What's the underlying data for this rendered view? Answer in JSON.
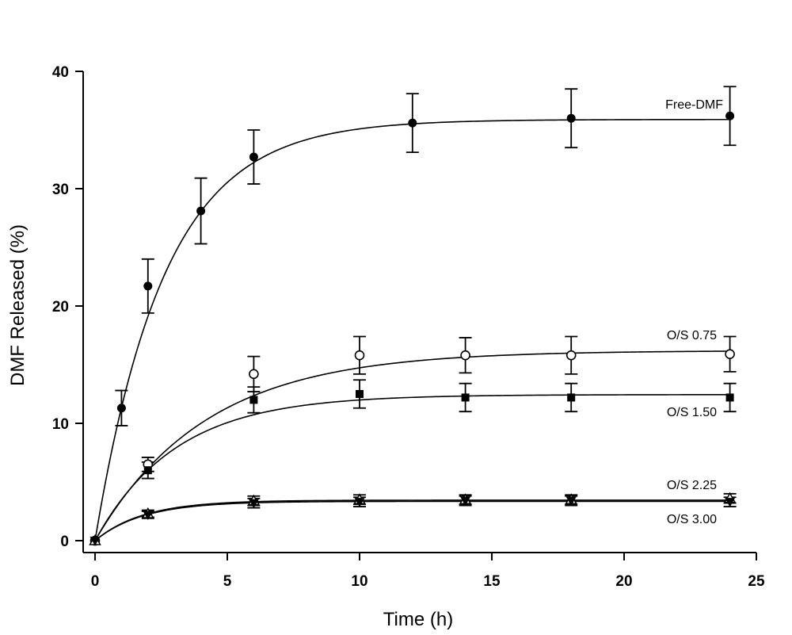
{
  "chart_data": {
    "type": "scatter",
    "title": "",
    "xlabel": "Time (h)",
    "ylabel": "DMF Released (%)",
    "xlim": [
      0,
      25
    ],
    "ylim": [
      0,
      40
    ],
    "xticks": [
      0,
      5,
      10,
      15,
      20,
      25
    ],
    "yticks": [
      0,
      10,
      20,
      30,
      40
    ],
    "grid": false,
    "legend": "inline labels at right end of each curve",
    "series": [
      {
        "name": "Free-DMF",
        "marker": "filled-circle",
        "x": [
          0,
          1,
          2,
          4,
          6,
          12,
          18,
          24
        ],
        "y": [
          0,
          11.3,
          21.7,
          28.1,
          32.7,
          35.6,
          36.0,
          36.2
        ],
        "err": [
          0,
          1.5,
          2.3,
          2.8,
          2.3,
          2.5,
          2.5,
          2.5
        ],
        "fit": {
          "plateau": 35.9,
          "k": 0.38
        }
      },
      {
        "name": "O/S 0.75",
        "marker": "open-circle",
        "x": [
          0,
          2,
          6,
          10,
          14,
          18,
          24
        ],
        "y": [
          0,
          6.5,
          14.2,
          15.8,
          15.8,
          15.8,
          15.9
        ],
        "err": [
          0,
          0.6,
          1.5,
          1.6,
          1.5,
          1.6,
          1.5
        ],
        "fit": {
          "plateau": 16.2,
          "k": 0.24
        }
      },
      {
        "name": "O/S 1.50",
        "marker": "filled-square",
        "x": [
          0,
          2,
          6,
          10,
          14,
          18,
          24
        ],
        "y": [
          0,
          6.0,
          12.0,
          12.5,
          12.2,
          12.2,
          12.2
        ],
        "err": [
          0,
          0.7,
          1.1,
          1.2,
          1.2,
          1.2,
          1.2
        ],
        "fit": {
          "plateau": 12.45,
          "k": 0.33
        }
      },
      {
        "name": "O/S 2.25",
        "marker": "open-triangle-up",
        "x": [
          0,
          2,
          6,
          10,
          14,
          18,
          24
        ],
        "y": [
          0,
          2.3,
          3.4,
          3.5,
          3.5,
          3.5,
          3.6
        ],
        "err": [
          0,
          0.3,
          0.4,
          0.4,
          0.4,
          0.4,
          0.4
        ],
        "fit": {
          "plateau": 3.45,
          "k": 0.55
        }
      },
      {
        "name": "O/S 3.00",
        "marker": "filled-triangle-down",
        "x": [
          0,
          2,
          6,
          10,
          14,
          18,
          24
        ],
        "y": [
          0,
          2.2,
          3.2,
          3.3,
          3.4,
          3.4,
          3.3
        ],
        "err": [
          0,
          0.3,
          0.4,
          0.4,
          0.4,
          0.4,
          0.4
        ],
        "fit": {
          "plateau": 3.35,
          "k": 0.55
        }
      }
    ]
  }
}
